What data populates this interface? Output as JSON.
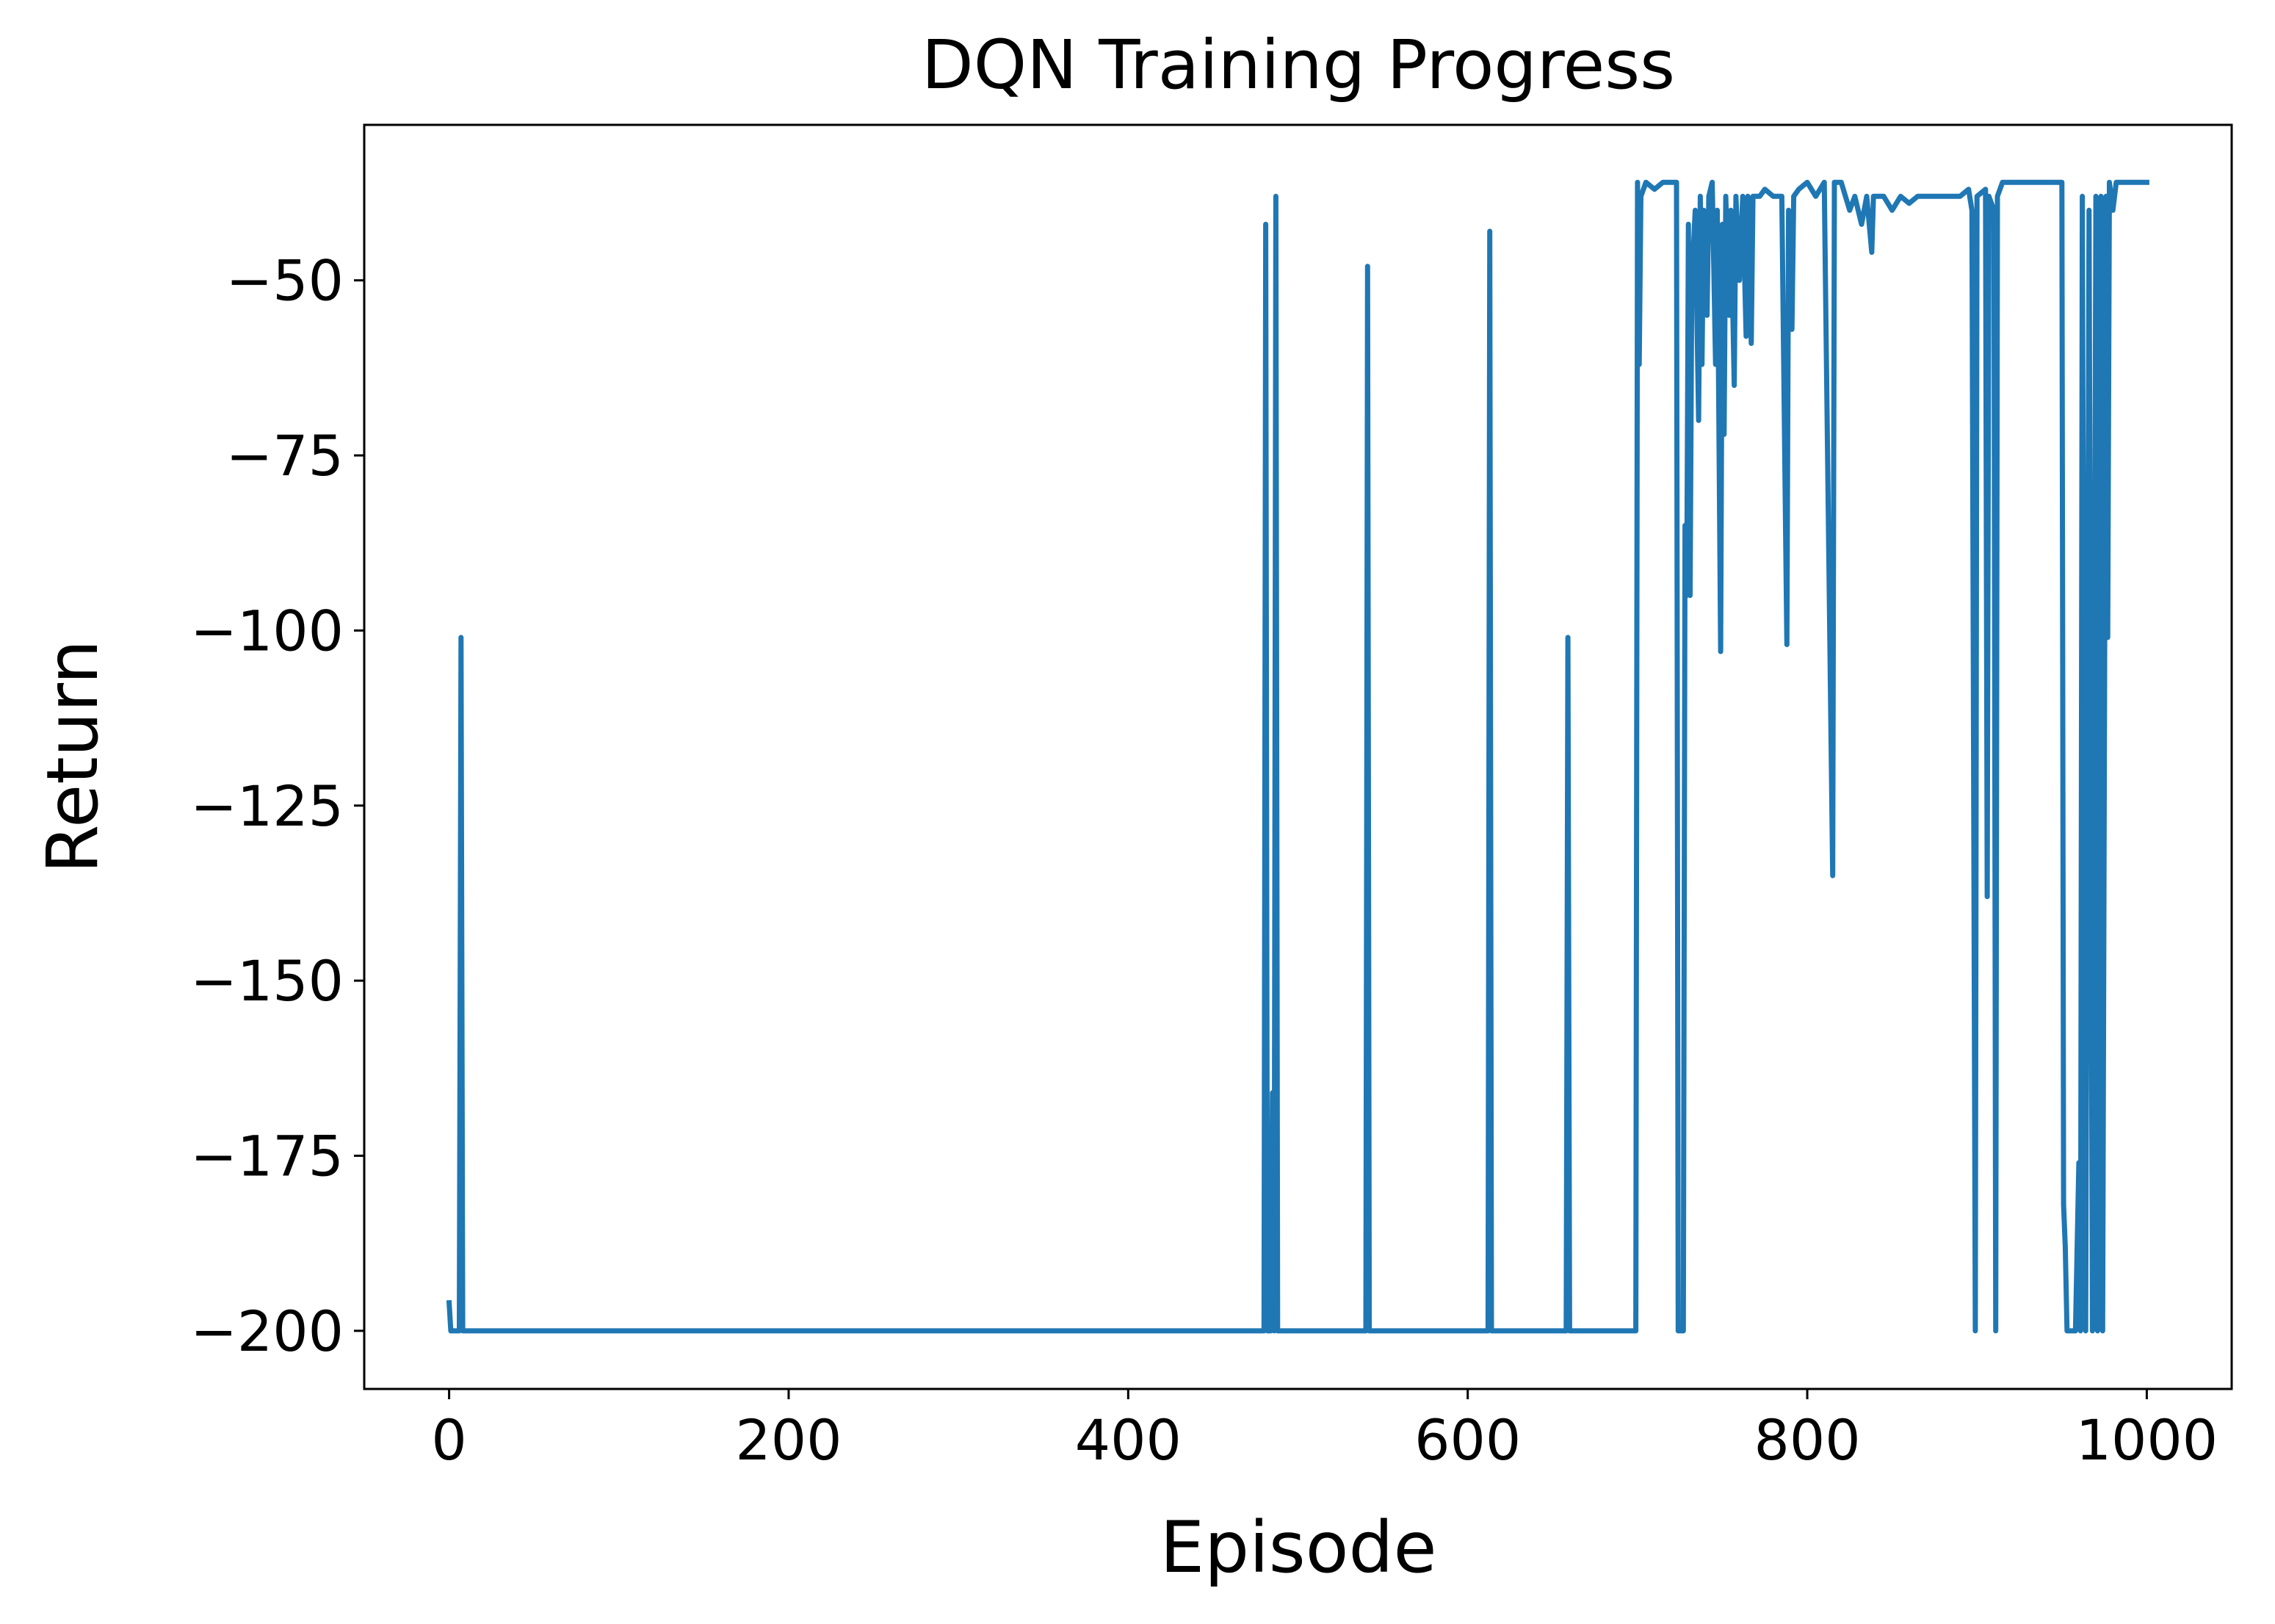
{
  "chart_data": {
    "type": "line",
    "title": "DQN Training Progress",
    "xlabel": "Episode",
    "ylabel": "Return",
    "xlim": [
      -50,
      1050
    ],
    "ylim": [
      -208.3,
      -27.8
    ],
    "xticks": [
      0,
      200,
      400,
      600,
      800,
      1000
    ],
    "yticks": [
      {
        "value": -200,
        "label": "−200"
      },
      {
        "value": -175,
        "label": "−175"
      },
      {
        "value": -150,
        "label": "−150"
      },
      {
        "value": -125,
        "label": "−125"
      },
      {
        "value": -100,
        "label": "−100"
      },
      {
        "value": -75,
        "label": "−75"
      },
      {
        "value": -50,
        "label": "−50"
      }
    ],
    "series": [
      {
        "name": "Return",
        "color": "#1f77b4",
        "x": [
          0,
          1,
          6,
          7,
          8,
          480,
          481,
          482,
          484,
          485,
          486,
          487,
          488,
          540,
          541,
          542,
          612,
          613,
          614,
          658,
          659,
          660,
          699,
          700,
          701,
          702,
          705,
          710,
          715,
          723,
          724,
          727,
          728,
          729,
          730,
          731,
          732,
          734,
          736,
          737,
          738,
          739,
          741,
          742,
          744,
          746,
          747,
          749,
          750,
          751,
          752,
          754,
          755,
          757,
          758,
          760,
          762,
          764,
          765,
          767,
          768,
          772,
          775,
          780,
          785,
          788,
          789,
          791,
          792,
          795,
          800,
          805,
          810,
          815,
          816,
          820,
          825,
          828,
          832,
          835,
          838,
          839,
          845,
          850,
          855,
          860,
          865,
          870,
          880,
          890,
          895,
          897,
          899,
          900,
          905,
          906,
          907,
          910,
          911,
          912,
          915,
          920,
          930,
          940,
          950,
          951,
          952,
          953,
          955,
          958,
          960,
          961,
          962,
          964,
          966,
          968,
          970,
          971,
          973,
          974,
          976,
          977,
          978,
          980,
          982,
          990,
          1000
        ],
        "values": [
          -196,
          -200,
          -200,
          -101,
          -200,
          -200,
          -42,
          -200,
          -200,
          -166,
          -200,
          -38,
          -200,
          -200,
          -48,
          -200,
          -200,
          -43,
          -200,
          -200,
          -101,
          -200,
          -200,
          -36,
          -62,
          -38,
          -36,
          -37,
          -36,
          -36,
          -200,
          -200,
          -85,
          -95,
          -42,
          -95,
          -50,
          -40,
          -70,
          -38,
          -62,
          -40,
          -55,
          -38,
          -36,
          -62,
          -40,
          -103,
          -42,
          -72,
          -38,
          -55,
          -40,
          -65,
          -38,
          -50,
          -38,
          -58,
          -38,
          -59,
          -38,
          -38,
          -37,
          -38,
          -38,
          -102,
          -40,
          -57,
          -38,
          -37,
          -36,
          -38,
          -36,
          -135,
          -36,
          -36,
          -40,
          -38,
          -42,
          -38,
          -46,
          -38,
          -38,
          -40,
          -38,
          -39,
          -38,
          -38,
          -38,
          -38,
          -37,
          -40,
          -200,
          -38,
          -37,
          -138,
          -38,
          -40,
          -200,
          -38,
          -36,
          -36,
          -36,
          -36,
          -36,
          -182,
          -188,
          -200,
          -200,
          -200,
          -176,
          -200,
          -38,
          -200,
          -40,
          -200,
          -38,
          -200,
          -38,
          -200,
          -38,
          -101,
          -36,
          -40,
          -36,
          -36,
          -36
        ]
      }
    ]
  }
}
